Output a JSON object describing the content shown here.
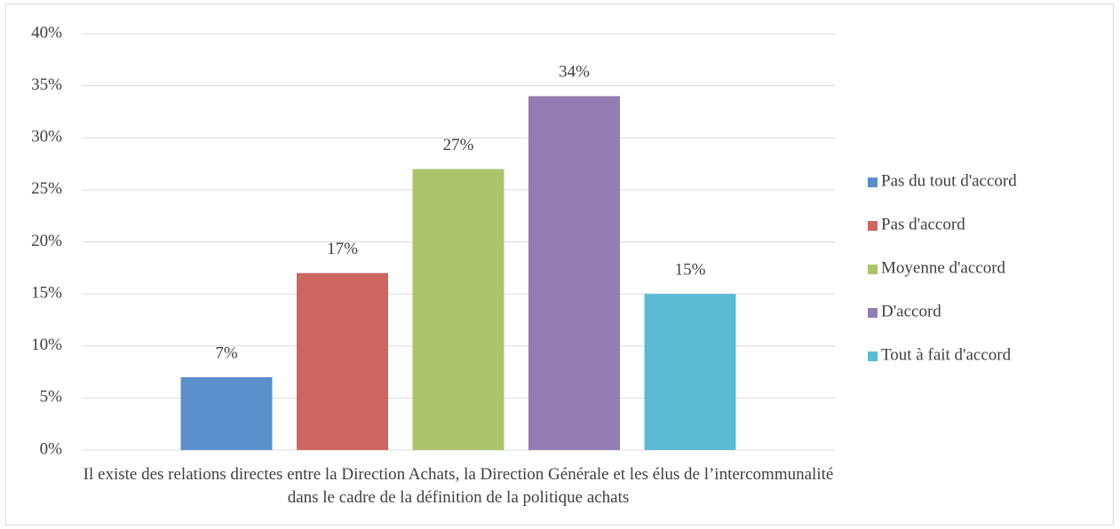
{
  "chart_data": {
    "type": "bar",
    "categories": [
      "Il existe des relations directes entre la Direction Achats, la Direction Générale et les élus de l’intercommunalité dans le cadre de la définition de la politique achats"
    ],
    "series": [
      {
        "name": "Pas du tout d'accord",
        "color": "#5b8fc9",
        "values": [
          7
        ],
        "value_labels": [
          "7%"
        ]
      },
      {
        "name": "Pas d'accord",
        "color": "#cd6560",
        "values": [
          17
        ],
        "value_labels": [
          "17%"
        ]
      },
      {
        "name": "Moyenne d'accord",
        "color": "#a9c46b",
        "values": [
          27
        ],
        "value_labels": [
          "27%"
        ]
      },
      {
        "name": "D'accord",
        "color": "#937cb2",
        "values": [
          34
        ],
        "value_labels": [
          "34%"
        ]
      },
      {
        "name": "Tout à fait d'accord",
        "color": "#5bbbd3",
        "values": [
          15
        ],
        "value_labels": [
          "15%"
        ]
      }
    ],
    "ylim": [
      0,
      40
    ],
    "yticks": [
      {
        "value": 0,
        "label": "0%"
      },
      {
        "value": 5,
        "label": "5%"
      },
      {
        "value": 10,
        "label": "10%"
      },
      {
        "value": 15,
        "label": "15%"
      },
      {
        "value": 20,
        "label": "20%"
      },
      {
        "value": 25,
        "label": "25%"
      },
      {
        "value": 30,
        "label": "30%"
      },
      {
        "value": 35,
        "label": "35%"
      },
      {
        "value": 40,
        "label": "40%"
      }
    ],
    "grid": true,
    "legend": "right"
  }
}
